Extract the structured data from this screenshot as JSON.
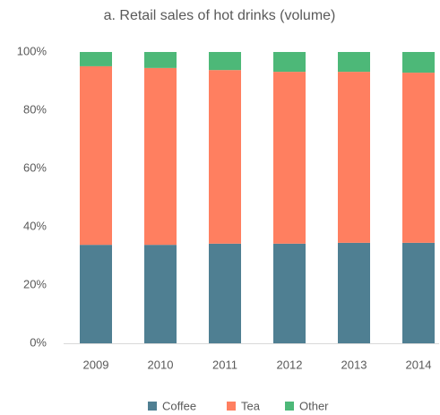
{
  "chart_data": {
    "type": "stacked_bar",
    "title": "a. Retail sales of hot drinks (volume)",
    "categories": [
      "2009",
      "2010",
      "2011",
      "2012",
      "2013",
      "2014"
    ],
    "series": [
      {
        "name": "Coffee",
        "color": "#4f7f92",
        "values": [
          33.8,
          33.8,
          34.2,
          34.2,
          34.5,
          34.5
        ]
      },
      {
        "name": "Tea",
        "color": "#ff7f60",
        "values": [
          61.3,
          60.7,
          59.6,
          59.0,
          58.7,
          58.4
        ]
      },
      {
        "name": "Other",
        "color": "#4db878",
        "values": [
          4.9,
          5.5,
          6.2,
          6.8,
          6.8,
          7.1
        ]
      }
    ],
    "ylim": [
      0,
      100
    ],
    "yticks": [
      {
        "value": 0,
        "label": "0%"
      },
      {
        "value": 20,
        "label": "20%"
      },
      {
        "value": 40,
        "label": "40%"
      },
      {
        "value": 60,
        "label": "60%"
      },
      {
        "value": 80,
        "label": "80%"
      },
      {
        "value": 100,
        "label": "100%"
      }
    ],
    "grid": false,
    "legend": "bottom"
  }
}
